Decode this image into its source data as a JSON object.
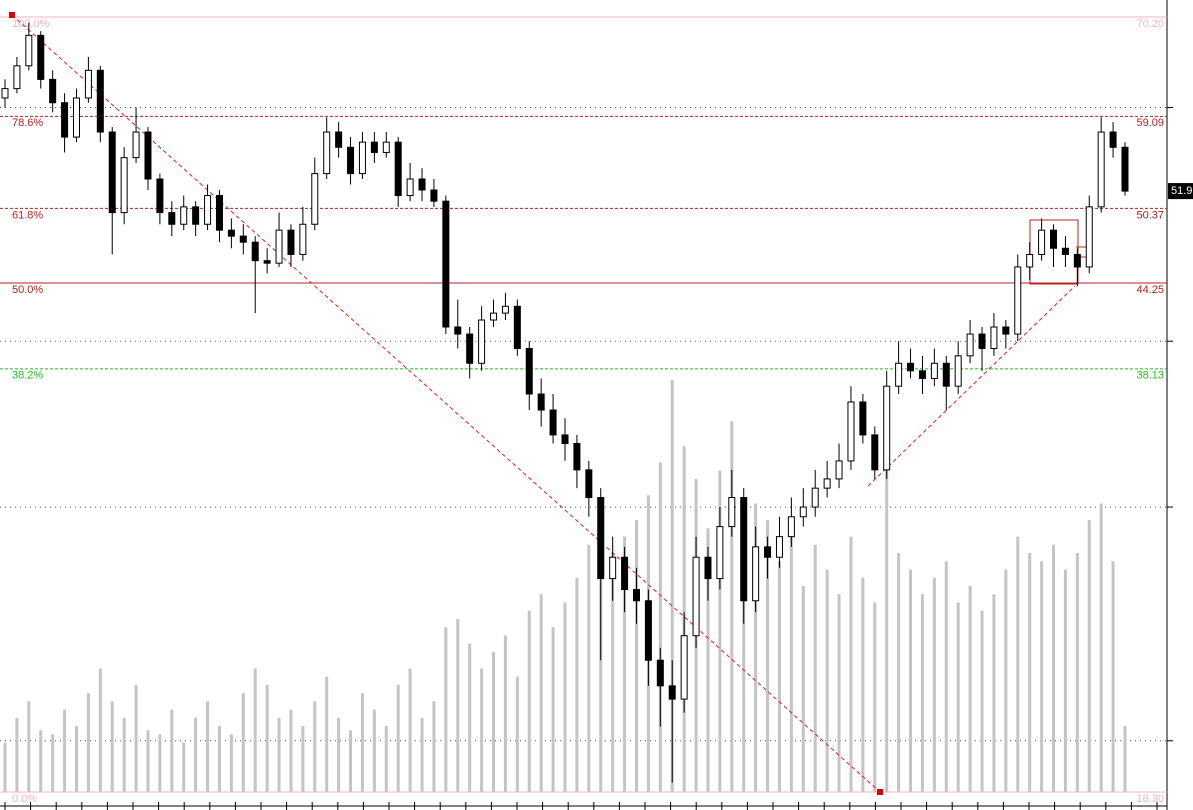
{
  "chart_data": {
    "type": "candlestick",
    "log_scale": true,
    "ylim": [
      18.3,
      70.2
    ],
    "gridlines": [
      20,
      30,
      40,
      60
    ],
    "up_color": "#ffffff",
    "down_color": "#000000",
    "volume_color": "#c4c4c4",
    "open": [
      61.0,
      62.0,
      64.5,
      68.0,
      63.0,
      60.5,
      57.0,
      61.0,
      64.0,
      57.5,
      50.0,
      55.0,
      57.5,
      53.0,
      50.0,
      49.0,
      50.5,
      49.0,
      51.5,
      48.5,
      48.0,
      47.5,
      46.0,
      45.8,
      48.5,
      46.5,
      49.0,
      53.5,
      57.5,
      56.0,
      53.5,
      56.5,
      55.5,
      56.5,
      51.5,
      53.0,
      52.0,
      51.0,
      41.0,
      40.5,
      38.5,
      41.5,
      42.0,
      42.5,
      39.5,
      36.5,
      35.5,
      34.0,
      33.5,
      32.0,
      30.5,
      26.5,
      27.5,
      26.0,
      25.5,
      23.0,
      22.0,
      21.5,
      24.0,
      27.5,
      26.5,
      29.0,
      30.5,
      25.5,
      28.0,
      27.5,
      28.5,
      29.5,
      30.0,
      31.0,
      31.5,
      32.5,
      36.0,
      34.0,
      32.0,
      37.0,
      38.5,
      38.0,
      37.5,
      38.5,
      37.0,
      39.0,
      40.5,
      39.5,
      41.0,
      40.5,
      45.5,
      46.5,
      48.5,
      47.0,
      46.5,
      45.5,
      50.5,
      57.5,
      56.0
    ],
    "high": [
      63.0,
      65.5,
      69.5,
      68.5,
      64.0,
      61.5,
      62.0,
      65.5,
      64.5,
      58.0,
      56.0,
      60.0,
      58.0,
      53.5,
      51.0,
      51.5,
      51.0,
      52.5,
      52.0,
      49.5,
      49.0,
      48.0,
      47.0,
      50.0,
      49.0,
      50.5,
      55.0,
      59.0,
      58.5,
      57.0,
      57.5,
      57.5,
      57.5,
      57.0,
      54.5,
      54.0,
      53.0,
      51.5,
      43.0,
      41.0,
      42.5,
      43.0,
      43.5,
      43.0,
      40.0,
      37.5,
      36.5,
      35.0,
      34.0,
      32.5,
      31.0,
      28.5,
      28.0,
      27.0,
      26.0,
      23.5,
      23.0,
      25.0,
      28.5,
      28.0,
      30.0,
      32.0,
      31.0,
      29.0,
      28.5,
      29.5,
      30.5,
      31.0,
      32.0,
      32.5,
      33.5,
      37.0,
      36.5,
      34.5,
      38.0,
      40.0,
      39.5,
      39.0,
      39.5,
      39.0,
      40.0,
      41.5,
      41.0,
      42.0,
      41.5,
      46.5,
      47.5,
      49.5,
      49.0,
      48.0,
      47.0,
      51.5,
      59.0,
      58.5,
      56.5
    ],
    "low": [
      60.0,
      61.5,
      64.0,
      62.0,
      59.5,
      55.5,
      56.5,
      60.5,
      56.5,
      46.5,
      49.0,
      54.5,
      52.0,
      49.0,
      48.0,
      48.5,
      48.0,
      48.5,
      47.5,
      47.0,
      46.5,
      42.0,
      45.0,
      45.5,
      45.5,
      46.0,
      48.5,
      53.0,
      55.0,
      52.5,
      53.0,
      54.5,
      55.0,
      50.5,
      51.0,
      51.0,
      50.5,
      40.5,
      39.5,
      37.5,
      38.0,
      41.0,
      41.5,
      39.0,
      35.5,
      34.5,
      33.5,
      32.5,
      31.0,
      29.5,
      23.0,
      25.5,
      25.0,
      24.5,
      22.0,
      20.5,
      18.6,
      21.0,
      23.5,
      25.5,
      26.0,
      28.5,
      24.5,
      25.0,
      26.5,
      27.0,
      28.0,
      29.0,
      29.5,
      30.5,
      31.0,
      32.0,
      33.5,
      31.5,
      31.5,
      36.5,
      37.5,
      36.5,
      37.0,
      35.5,
      36.5,
      38.5,
      38.0,
      39.0,
      39.5,
      40.0,
      44.5,
      46.0,
      45.5,
      45.5,
      44.0,
      45.0,
      50.0,
      55.0,
      51.5
    ],
    "close": [
      62.0,
      64.5,
      68.0,
      63.0,
      60.5,
      57.0,
      61.0,
      64.0,
      57.5,
      50.0,
      55.0,
      57.5,
      53.0,
      50.0,
      49.0,
      50.5,
      49.0,
      51.5,
      48.5,
      48.0,
      47.5,
      46.0,
      45.8,
      48.5,
      46.5,
      49.0,
      53.5,
      57.5,
      56.0,
      53.5,
      56.5,
      55.5,
      56.5,
      51.5,
      53.0,
      52.0,
      51.0,
      41.0,
      40.5,
      38.5,
      41.5,
      42.0,
      42.5,
      39.5,
      36.5,
      35.5,
      34.0,
      33.5,
      32.0,
      30.5,
      26.5,
      27.5,
      26.0,
      25.5,
      23.0,
      22.0,
      21.5,
      24.0,
      27.5,
      26.5,
      29.0,
      30.5,
      25.5,
      28.0,
      27.5,
      28.5,
      29.5,
      30.0,
      31.0,
      31.5,
      32.5,
      36.0,
      34.0,
      32.0,
      37.0,
      38.5,
      38.0,
      37.5,
      38.5,
      37.0,
      39.0,
      40.5,
      39.5,
      41.0,
      40.5,
      45.5,
      46.5,
      48.5,
      47.0,
      46.5,
      45.5,
      50.5,
      57.5,
      56.0,
      51.9
    ],
    "volume": [
      12,
      18,
      22,
      15,
      14,
      20,
      16,
      24,
      30,
      22,
      18,
      26,
      15,
      14,
      20,
      12,
      18,
      22,
      16,
      14,
      24,
      30,
      26,
      18,
      20,
      16,
      22,
      28,
      18,
      15,
      24,
      20,
      16,
      26,
      30,
      18,
      22,
      40,
      42,
      36,
      30,
      34,
      38,
      28,
      44,
      48,
      40,
      46,
      52,
      60,
      70,
      58,
      62,
      66,
      72,
      80,
      100,
      84,
      76,
      64,
      78,
      90,
      60,
      70,
      66,
      56,
      64,
      50,
      60,
      54,
      48,
      62,
      52,
      46,
      92,
      58,
      54,
      48,
      52,
      56,
      46,
      50,
      44,
      48,
      54,
      62,
      58,
      56,
      60,
      54,
      58,
      66,
      70,
      56,
      16
    ],
    "fib_levels": [
      {
        "ratio": "100.0%",
        "price": {
          "value": 70.2,
          "label": "70.20"
        },
        "color": "#f4b3bf",
        "style": "solid"
      },
      {
        "ratio": "78.6%",
        "price": {
          "value": 59.09,
          "label": "59.09"
        },
        "color": "#b22222",
        "style": "dashed"
      },
      {
        "ratio": "61.8%",
        "price": {
          "value": 50.37,
          "label": "50.37"
        },
        "color": "#b22222",
        "style": "dashed"
      },
      {
        "ratio": "50.0%",
        "price": {
          "value": 44.25,
          "label": "44.25"
        },
        "color": "#b22222",
        "style": "solid"
      },
      {
        "ratio": "38.2%",
        "price": {
          "value": 38.13,
          "label": "38.13"
        },
        "color": "#22bb22",
        "style": "dashed"
      },
      {
        "ratio": "0.0%",
        "price": {
          "value": 18.3,
          "label": "18.30"
        },
        "color": "#f4b3bf",
        "style": "solid"
      }
    ]
  }
}
